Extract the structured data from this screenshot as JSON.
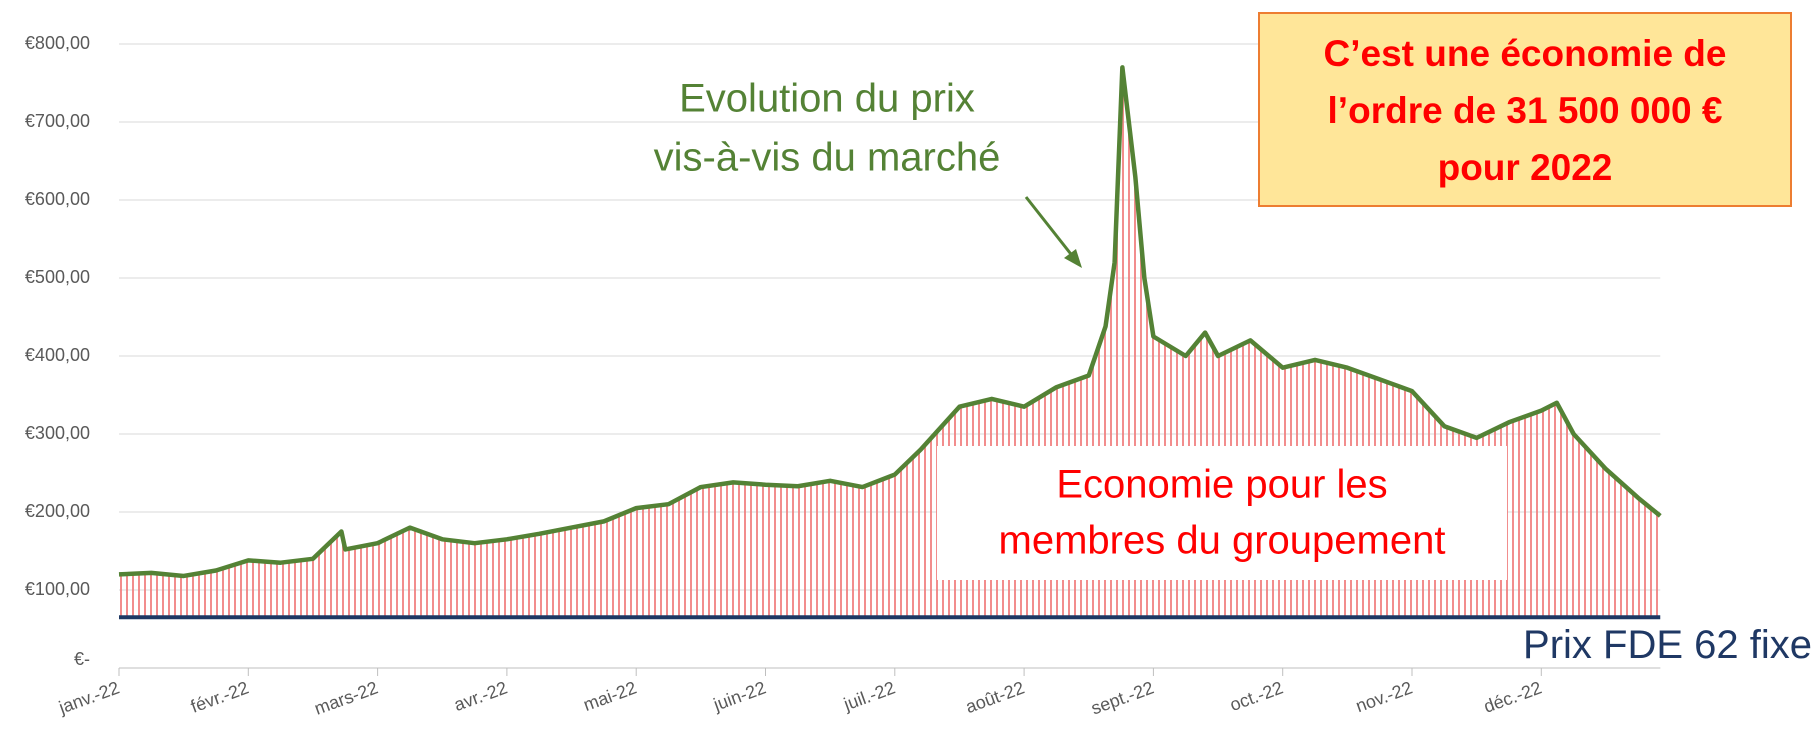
{
  "chart_data": {
    "type": "line",
    "x": [
      0,
      0.25,
      0.5,
      0.75,
      1,
      1.25,
      1.5,
      1.72,
      1.75,
      2,
      2.25,
      2.5,
      2.75,
      3,
      3.25,
      3.5,
      3.75,
      4,
      4.25,
      4.5,
      4.75,
      5,
      5.25,
      5.5,
      5.75,
      6,
      6.2,
      6.5,
      6.75,
      7,
      7.25,
      7.5,
      7.63,
      7.7,
      7.76,
      7.86,
      7.93,
      8,
      8.25,
      8.4,
      8.5,
      8.75,
      9,
      9.25,
      9.5,
      9.75,
      10,
      10.25,
      10.5,
      10.75,
      11,
      11.12,
      11.25,
      11.5,
      11.75,
      11.92
    ],
    "series": [
      {
        "color": "#548235",
        "values": [
          120,
          122,
          118,
          125,
          138,
          135,
          140,
          175,
          152,
          160,
          180,
          165,
          160,
          165,
          172,
          180,
          188,
          205,
          210,
          232,
          238,
          235,
          233,
          240,
          232,
          248,
          280,
          335,
          345,
          335,
          360,
          375,
          438,
          520,
          770,
          630,
          500,
          425,
          400,
          430,
          400,
          420,
          385,
          395,
          385,
          370,
          355,
          310,
          295,
          315,
          330,
          340,
          300,
          255,
          218,
          195
        ]
      },
      {
        "name": "Prix FDE 62 fixe",
        "color": "#1f3864",
        "values": [
          65,
          65,
          65,
          65,
          65,
          65,
          65,
          65,
          65,
          65,
          65,
          65,
          65,
          65,
          65,
          65,
          65,
          65,
          65,
          65,
          65,
          65,
          65,
          65,
          65,
          65,
          65,
          65,
          65,
          65,
          65,
          65,
          65,
          65,
          65,
          65,
          65,
          65,
          65,
          65,
          65,
          65,
          65,
          65,
          65,
          65,
          65,
          65,
          65,
          65,
          65,
          65,
          65,
          65,
          65,
          65
        ]
      }
    ],
    "fill_color": "#f4a6a6",
    "xlim": [
      0,
      11.92
    ],
    "xticks": [
      {
        "value": 0,
        "label": "janv.-22"
      },
      {
        "value": 1,
        "label": "févr.-22"
      },
      {
        "value": 2,
        "label": "mars-22"
      },
      {
        "value": 3,
        "label": "avr.-22"
      },
      {
        "value": 4,
        "label": "mai-22"
      },
      {
        "value": 5,
        "label": "juin-22"
      },
      {
        "value": 6,
        "label": "juil.-22"
      },
      {
        "value": 7,
        "label": "août-22"
      },
      {
        "value": 8,
        "label": "sept.-22"
      },
      {
        "value": 9,
        "label": "oct.-22"
      },
      {
        "value": 10,
        "label": "nov.-22"
      },
      {
        "value": 11,
        "label": "déc.-22"
      }
    ],
    "ylim": [
      0,
      800
    ],
    "yticks": [
      {
        "value": 0,
        "label": "€-"
      },
      {
        "value": 100,
        "label": "€100,00"
      },
      {
        "value": 200,
        "label": "€200,00"
      },
      {
        "value": 300,
        "label": "€300,00"
      },
      {
        "value": 400,
        "label": "€400,00"
      },
      {
        "value": 500,
        "label": "€500,00"
      },
      {
        "value": 600,
        "label": "€600,00"
      },
      {
        "value": 700,
        "label": "€700,00"
      },
      {
        "value": 800,
        "label": "€800,00"
      }
    ],
    "grid": true,
    "annotations": {
      "market": [
        "Evolution du prix",
        "vis-à-vis du marché"
      ],
      "saving": [
        "Economie pour les",
        "membres du groupement"
      ],
      "box": [
        "C’est une économie de",
        "l’ordre de 31 500 000 €",
        "pour 2022"
      ]
    }
  }
}
